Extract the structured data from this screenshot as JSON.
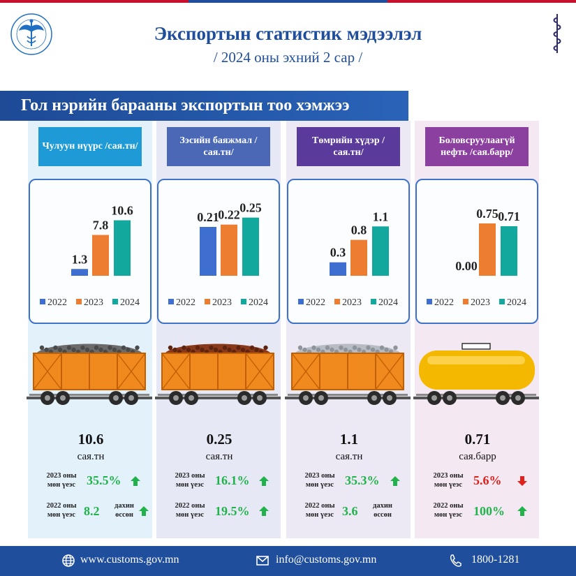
{
  "header": {
    "title": "Экспортын статистик мэдээлэл",
    "subtitle": "/ 2024 оны эхний 2 сар /",
    "logo_text": "ГААЛИЙН ЕРӨНХИЙ ГАЗАР · MONGOLIAN CUSTOMS",
    "script_text": "ᠭᠠᠭᠠᠯᠢ"
  },
  "section_title": "Гол нэрийн барааны экспортын тоо хэмжээ",
  "colors": {
    "y2022": "#3e6fd0",
    "y2023": "#ed7d31",
    "y2024": "#13a89e",
    "accent": "#1f4e9c"
  },
  "legend": [
    "2022",
    "2023",
    "2024"
  ],
  "chart_data": [
    {
      "type": "bar",
      "title": "Чулуун нүүрс /сая.тн/",
      "categories": [
        "2022",
        "2023",
        "2024"
      ],
      "values": [
        1.3,
        7.8,
        10.6
      ],
      "labels": [
        "1.3",
        "7.8",
        "10.6"
      ],
      "ylim": [
        0,
        12
      ]
    },
    {
      "type": "bar",
      "title": "Зэсийн баяжмал /сая.тн/",
      "categories": [
        "2022",
        "2023",
        "2024"
      ],
      "values": [
        0.21,
        0.22,
        0.25
      ],
      "labels": [
        "0.21",
        "0.22",
        "0.25"
      ],
      "ylim": [
        0,
        0.27
      ]
    },
    {
      "type": "bar",
      "title": "Төмрийн хүдэр /сая.тн/",
      "categories": [
        "2022",
        "2023",
        "2024"
      ],
      "values": [
        0.3,
        0.8,
        1.1
      ],
      "labels": [
        "0.3",
        "0.8",
        "1.1"
      ],
      "ylim": [
        0,
        1.4
      ]
    },
    {
      "type": "bar",
      "title": "Боловсруулаагүй нефть /сая.барр/",
      "categories": [
        "2022",
        "2023",
        "2024"
      ],
      "values": [
        0.0,
        0.75,
        0.71
      ],
      "labels": [
        "0.00",
        "0.75",
        "0.71"
      ],
      "ylim": [
        0,
        0.9
      ]
    }
  ],
  "products": [
    {
      "label": "Чулуун нүүрс /сая.тн/",
      "label_color": "#1e9ad6",
      "panel_color": "#e3f1fb",
      "cargo": "coal",
      "value": "10.6",
      "unit": "сая.тн",
      "cmp1_label": "2023 оны мөн үеэс",
      "cmp1_value": "35.5%",
      "cmp1_dir": "up",
      "cmp2_label": "2022 оны мөн үеэс",
      "cmp2_value": "8.2",
      "cmp2_extra": "дахин өссөн",
      "cmp2_dir": "up"
    },
    {
      "label": "Зэсийн баяжмал /сая.тн/",
      "label_color": "#4a68b6",
      "panel_color": "#e6e9f5",
      "cargo": "copper",
      "value": "0.25",
      "unit": "сая.тн",
      "cmp1_label": "2023 оны мөн үеэс",
      "cmp1_value": "16.1%",
      "cmp1_dir": "up",
      "cmp2_label": "2022 оны мөн үеэс",
      "cmp2_value": "19.5%",
      "cmp2_extra": "",
      "cmp2_dir": "up"
    },
    {
      "label": "Төмрийн хүдэр /сая.тн/",
      "label_color": "#5a3a9a",
      "panel_color": "#ece8f4",
      "cargo": "iron",
      "value": "1.1",
      "unit": "сая.тн",
      "cmp1_label": "2023 оны мөн үеэс",
      "cmp1_value": "35.3%",
      "cmp1_dir": "up",
      "cmp2_label": "2022 оны мөн үеэс",
      "cmp2_value": "3.6",
      "cmp2_extra": "дахин өссөн",
      "cmp2_dir": ""
    },
    {
      "label": "Боловсруулаагүй нефть /сая.барр/",
      "label_color": "#8b3f9e",
      "panel_color": "#f4e8f3",
      "cargo": "oil",
      "value": "0.71",
      "unit": "сая.барр",
      "cmp1_label": "2023 оны мөн үеэс",
      "cmp1_value": "5.6%",
      "cmp1_dir": "down",
      "cmp2_label": "2022 оны мөн үеэс",
      "cmp2_value": "100%",
      "cmp2_extra": "",
      "cmp2_dir": "up"
    }
  ],
  "footer": {
    "website": "www.customs.gov.mn",
    "email": "info@customs.gov.mn",
    "phone": "1800-1281"
  }
}
